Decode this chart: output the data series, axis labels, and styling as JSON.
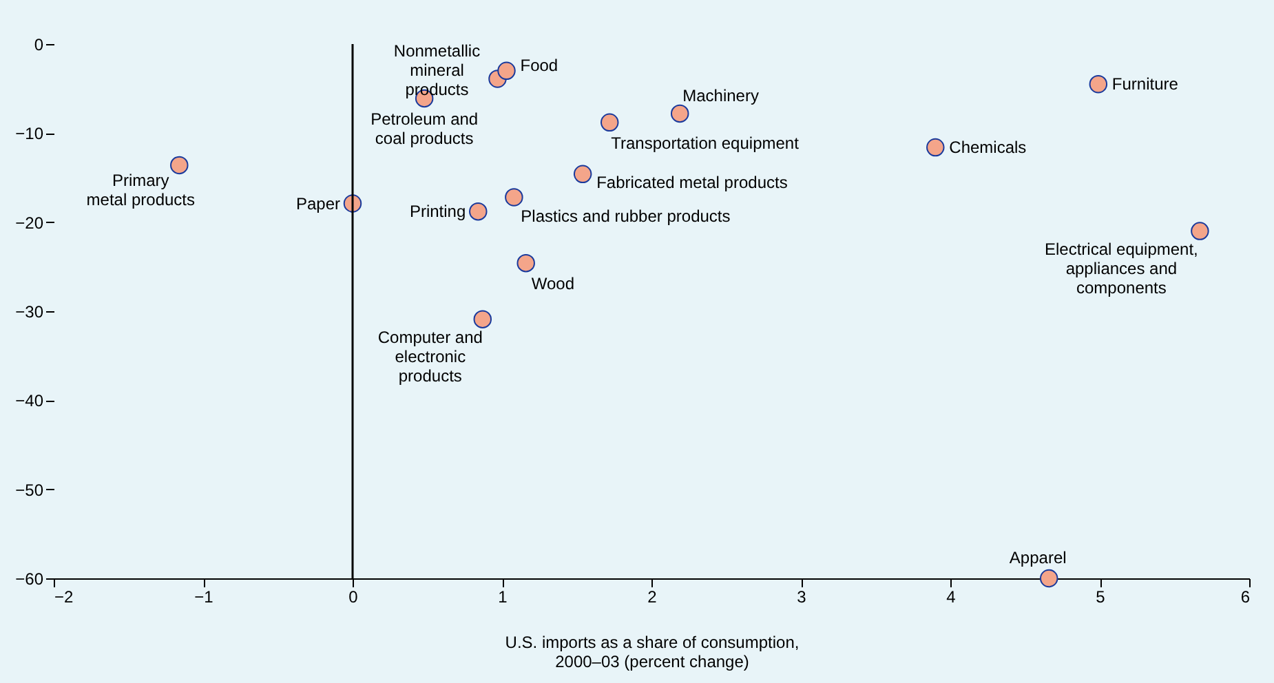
{
  "chart_data": {
    "type": "scatter",
    "xlabel": "U.S. imports as a share of consumption,\n2000–03 (percent change)",
    "x": [
      -1.16,
      0,
      0.48,
      0.97,
      1.03,
      0.84,
      1.08,
      1.16,
      0.87,
      1.72,
      2.19,
      1.54,
      3.9,
      4.99,
      5.67,
      4.66
    ],
    "values": [
      -13.6,
      -17.9,
      -6.1,
      -3.9,
      -3.0,
      -18.8,
      -17.2,
      -24.6,
      -30.9,
      -8.8,
      -7.8,
      -14.6,
      -11.6,
      -4.5,
      -21,
      -60
    ],
    "color": "#f4a58a",
    "marker": "circle",
    "xlim": [
      -2,
      6
    ],
    "xticks": [
      -2,
      -1,
      0,
      1,
      2,
      3,
      4,
      5,
      6
    ],
    "ylim": [
      -60,
      0
    ],
    "yticks": [
      -60,
      -50,
      -40,
      -30,
      -20,
      -10,
      0
    ],
    "grid": false,
    "ref_lines": [
      {
        "axis": "x",
        "value": 0,
        "color": "#000000"
      }
    ],
    "annotations": [
      {
        "text": "Primary\nmetal products",
        "x": -1.16,
        "y": -13.6
      },
      {
        "text": "Paper",
        "x": 0,
        "y": -17.9
      },
      {
        "text": "Petroleum and\ncoal products",
        "x": 0.48,
        "y": -6.1
      },
      {
        "text": "Nonmetallic\nmineral\nproducts",
        "x": 0.97,
        "y": -3.9
      },
      {
        "text": "Food",
        "x": 1.03,
        "y": -3.0
      },
      {
        "text": "Printing",
        "x": 0.84,
        "y": -18.8
      },
      {
        "text": "Plastics and rubber products",
        "x": 1.08,
        "y": -17.2
      },
      {
        "text": "Wood",
        "x": 1.16,
        "y": -24.6
      },
      {
        "text": "Computer and\nelectronic\nproducts",
        "x": 0.87,
        "y": -30.9
      },
      {
        "text": "Transportation equipment",
        "x": 1.72,
        "y": -8.8
      },
      {
        "text": "Machinery",
        "x": 2.19,
        "y": -7.8
      },
      {
        "text": "Fabricated metal products",
        "x": 1.54,
        "y": -14.6
      },
      {
        "text": "Chemicals",
        "x": 3.9,
        "y": -11.6
      },
      {
        "text": "Furniture",
        "x": 4.99,
        "y": -4.5
      },
      {
        "text": "Electrical equipment,\nappliances and\ncomponents",
        "x": 5.67,
        "y": -21
      },
      {
        "text": "Apparel",
        "x": 4.66,
        "y": -60
      }
    ]
  }
}
